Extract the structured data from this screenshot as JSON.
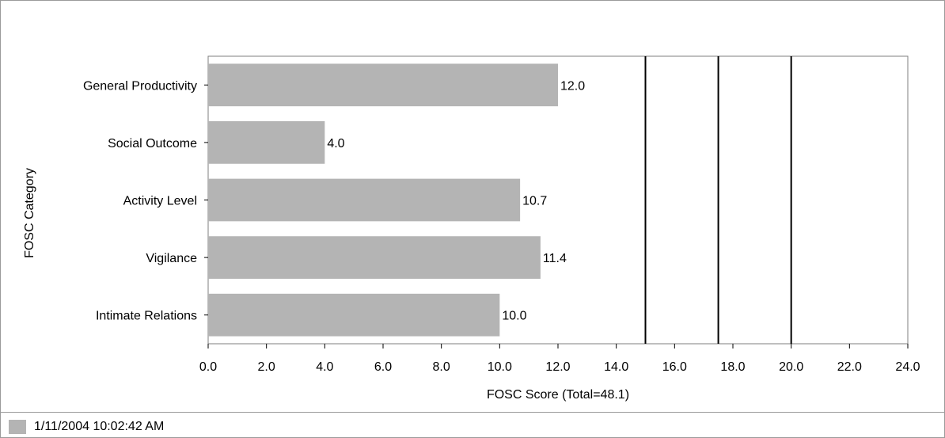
{
  "chart_data": {
    "type": "bar",
    "orientation": "horizontal",
    "categories": [
      "General Productivity",
      "Social Outcome",
      "Activity Level",
      "Vigilance",
      "Intimate Relations"
    ],
    "series": [
      {
        "name": "1/11/2004 10:02:42 AM",
        "values": [
          12.0,
          4.0,
          10.7,
          11.4,
          10.0
        ],
        "value_labels": [
          "12.0",
          "4.0",
          "10.7",
          "11.4",
          "10.0"
        ],
        "color": "#b4b4b4"
      }
    ],
    "xlabel": "FOSC Score (Total=48.1)",
    "ylabel": "FOSC Category",
    "xlim": [
      0,
      24
    ],
    "xticks": [
      "0.0",
      "2.0",
      "4.0",
      "6.0",
      "8.0",
      "10.0",
      "12.0",
      "14.0",
      "16.0",
      "18.0",
      "20.0",
      "22.0",
      "24.0"
    ],
    "reference_lines_x": [
      15.0,
      17.5,
      20.0
    ],
    "grid": false,
    "legend_position": "bottom-left"
  },
  "colors": {
    "bar": "#b4b4b4",
    "reference_line": "#000000",
    "plot_border": "#7f7f7f",
    "frame_border": "#9a9a9a"
  }
}
